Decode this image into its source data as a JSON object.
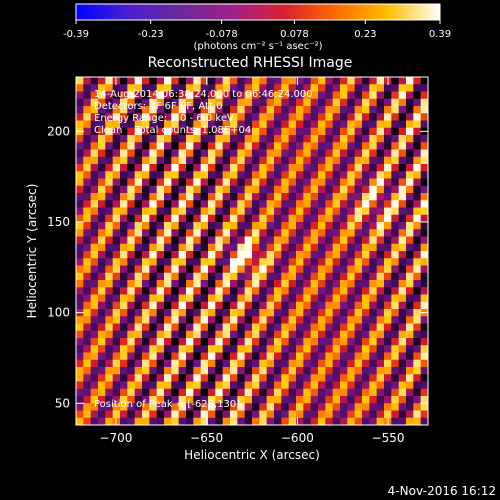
{
  "colorbar": {
    "ticks": [
      "-0.39",
      "-0.23",
      "-0.078",
      "0.078",
      "0.23",
      "0.39"
    ],
    "tick_values": [
      -0.39,
      -0.23,
      -0.078,
      0.078,
      0.23,
      0.39
    ],
    "range": [
      -0.39,
      0.39
    ],
    "unit_label": "(photons cm⁻² s⁻¹ asec⁻²)",
    "stops": [
      "#0000ff",
      "#4a1fd0",
      "#6a2a9a",
      "#a0208a",
      "#d82030",
      "#ff6a00",
      "#ffc000",
      "#ffffff"
    ]
  },
  "chart_data": {
    "type": "heatmap",
    "title": "Reconstructed RHESSI Image",
    "xlabel": "Heliocentric X (arcsec)",
    "ylabel": "Heliocentric Y (arcsec)",
    "xlim": [
      -722,
      -528
    ],
    "ylim": [
      38,
      230
    ],
    "x_ticks": [
      "−700",
      "−650",
      "−600",
      "−550"
    ],
    "x_tick_values": [
      -700,
      -650,
      -600,
      -550
    ],
    "y_ticks": [
      "50",
      "100",
      "150",
      "200"
    ],
    "y_tick_values": [
      50,
      100,
      150,
      200
    ],
    "value_range": [
      -0.39,
      0.39
    ],
    "peak_position": [
      -628,
      130
    ],
    "pattern": "diagonal fringe stripes"
  },
  "annotations": {
    "line1": "14-Aug-2014 06:38:24.000 to 06:46:24.000",
    "line2": "Detectors: 3F 6F 9F, Att 0",
    "line3": "Energy Range: 3.0 - 6.0 keV",
    "line4": "Clean    Total counts: 1.08E+04",
    "peak": "Position of Peak = [-628,130]"
  },
  "footer": {
    "date": "4-Nov-2016 16:12"
  }
}
